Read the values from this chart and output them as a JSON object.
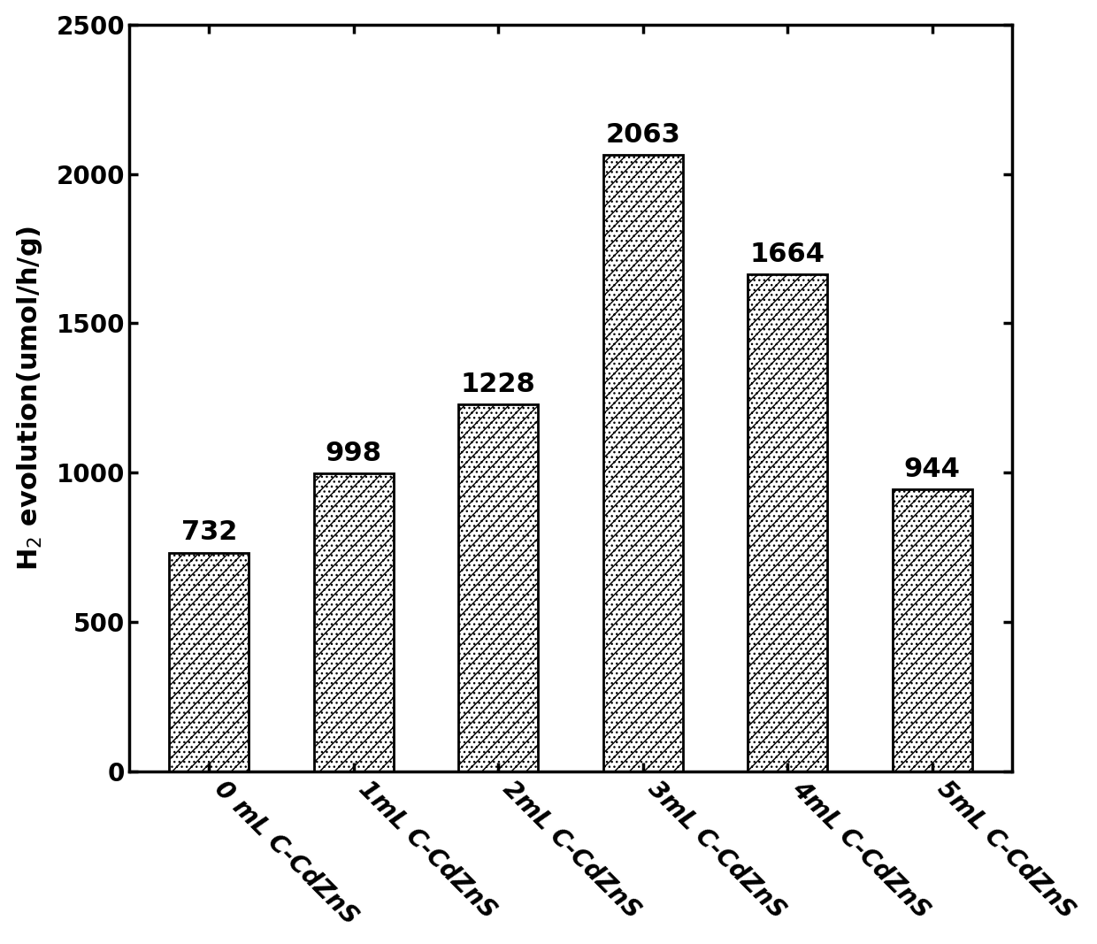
{
  "categories": [
    "0 mL C-CdZnS",
    "1mL C-CdZnS",
    "2mL C-CdZnS",
    "3mL C-CdZnS",
    "4mL C-CdZnS",
    "5mL C-CdZnS"
  ],
  "values": [
    732,
    998,
    1228,
    2063,
    1664,
    944
  ],
  "ylabel": "H$_2$ evolution(umol/h/g)",
  "yticks": [
    0,
    500,
    1000,
    1500,
    2000,
    2500
  ],
  "ylim": [
    0,
    2500
  ],
  "bar_color": "#ffffff",
  "bar_edge_color": "#000000",
  "bar_width": 0.55,
  "label_fontsize": 22,
  "tick_fontsize": 20,
  "value_fontsize": 22,
  "xlabel_rotation": -45,
  "hatch_pattern": "//..."
}
